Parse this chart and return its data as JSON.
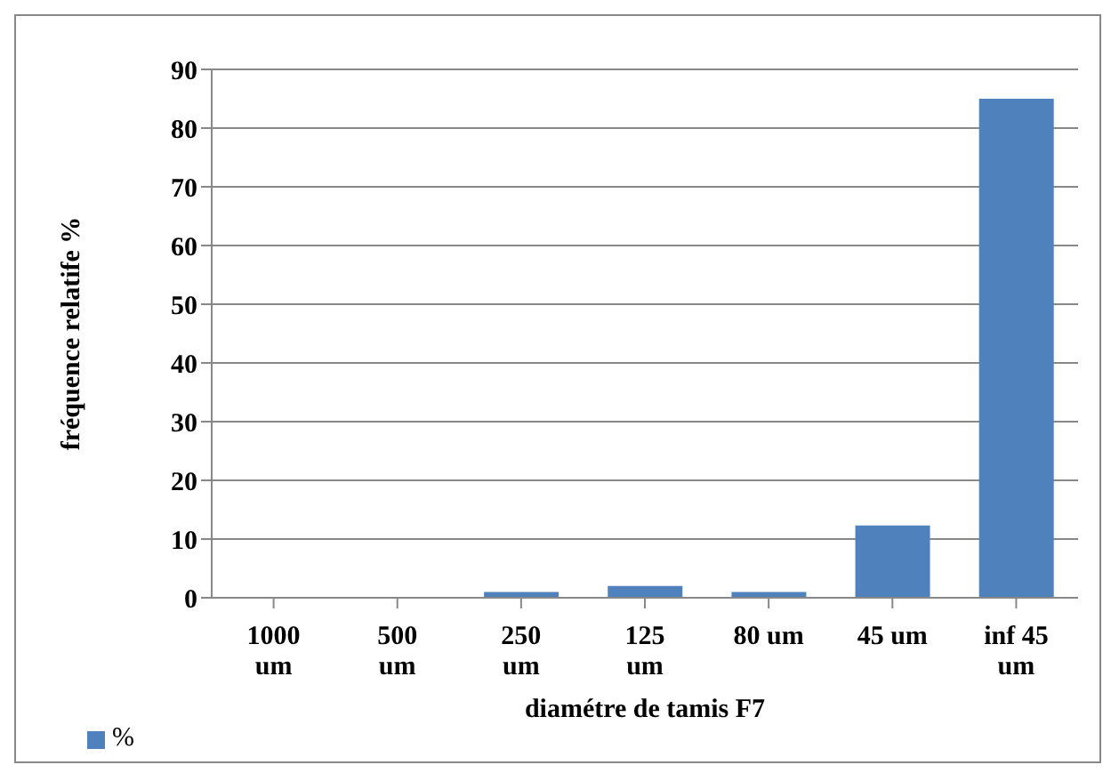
{
  "chart_data": {
    "type": "bar",
    "xlabel": "diamétre de tamis F7",
    "ylabel": "fréquence relatife %",
    "categories": [
      "1000 um",
      "500 um",
      "250 um",
      "125 um",
      "80 um",
      "45 um",
      "inf 45 um"
    ],
    "series": [
      {
        "name": "%",
        "color": "#4f81bd",
        "values": [
          0,
          0,
          1,
          2,
          1,
          12.3,
          85
        ]
      }
    ],
    "ylim": [
      0,
      90
    ],
    "yticks": [
      0,
      10,
      20,
      30,
      40,
      50,
      60,
      70,
      80,
      90
    ],
    "grid": "y",
    "legend": "bottom left"
  }
}
